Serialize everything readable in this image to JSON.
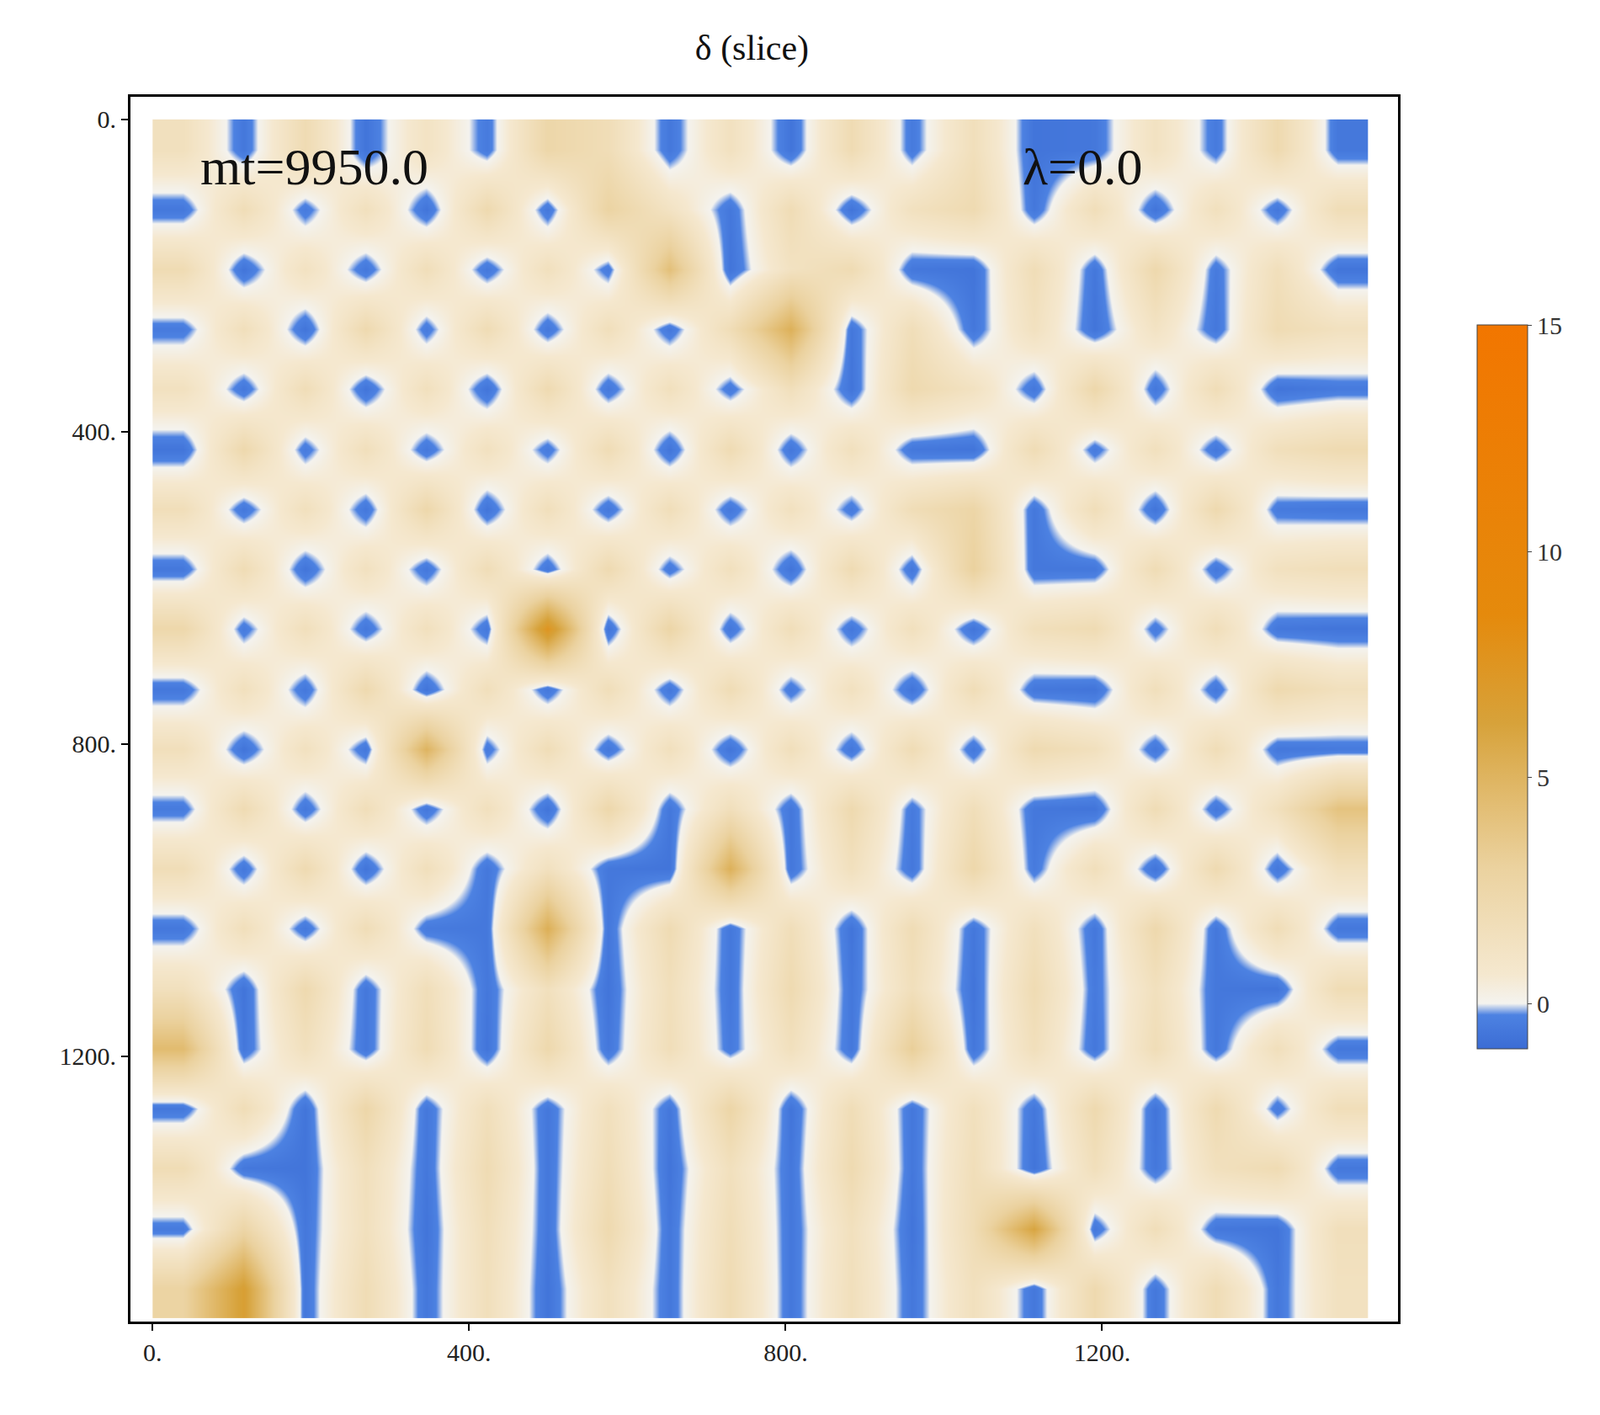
{
  "chart_data": {
    "type": "heatmap",
    "title": "δ (slice)",
    "annotations": [
      "mt=9950.0",
      "λ=0.0"
    ],
    "annotation_x": [
      58,
      1097
    ],
    "annotation_y": [
      60,
      60
    ],
    "x": [
      38.4,
      115.2,
      192,
      268.8,
      345.6,
      422.4,
      499.2,
      576,
      652.8,
      729.6,
      806.4,
      883.2,
      960,
      1036.8,
      1113.6,
      1190.4,
      1267.2,
      1344,
      1420.8,
      1497.6
    ],
    "y": [
      38.4,
      115.2,
      192,
      268.8,
      345.6,
      422.4,
      499.2,
      576,
      652.8,
      729.6,
      806.4,
      883.2,
      960,
      1036.8,
      1113.6,
      1190.4,
      1267.2,
      1344,
      1420.8,
      1497.6
    ],
    "cells": [
      [
        1.5,
        -0.6,
        2,
        -0.7,
        1.2,
        -0.5,
        2.5,
        1.8,
        -0.6,
        1.4,
        -0.7,
        2,
        -0.5,
        1.6,
        -0.7,
        -0.6,
        1.3,
        -0.5,
        2.2,
        -0.6
      ],
      [
        -0.6,
        1.8,
        -0.5,
        1.5,
        -0.7,
        2.2,
        -0.6,
        2.8,
        1.2,
        -0.6,
        1.9,
        -0.7,
        1.4,
        2.1,
        -0.6,
        1.7,
        -0.7,
        1.5,
        -0.6,
        1.8
      ],
      [
        2,
        -0.7,
        1.3,
        -0.6,
        1.7,
        -0.6,
        1.5,
        -0.5,
        4.2,
        -0.7,
        1.3,
        2,
        -0.6,
        -0.7,
        1.8,
        -0.6,
        2.3,
        -0.5,
        1.6,
        -0.7
      ],
      [
        -0.5,
        1.6,
        -0.7,
        2.2,
        -0.5,
        1.9,
        -0.6,
        1.6,
        -0.6,
        1.8,
        5.2,
        -0.6,
        1.7,
        -0.6,
        1.4,
        -0.7,
        1.2,
        -0.6,
        2,
        1.4
      ],
      [
        1.4,
        -0.6,
        1.8,
        -0.7,
        1.5,
        -0.7,
        2.1,
        -0.6,
        1.5,
        -0.5,
        1.6,
        -0.7,
        2.2,
        1.3,
        -0.6,
        2.4,
        -0.6,
        1.8,
        -0.7,
        -0.5
      ],
      [
        -0.7,
        2.3,
        -0.5,
        1.6,
        -0.6,
        1.4,
        -0.5,
        1.9,
        -0.7,
        2,
        -0.6,
        1.5,
        -0.6,
        -0.7,
        1.9,
        -0.5,
        1.5,
        -0.6,
        1.6,
        2.1
      ],
      [
        1.7,
        -0.6,
        1.5,
        -0.6,
        2.4,
        -0.7,
        1.6,
        -0.6,
        1.7,
        -0.6,
        1.4,
        -0.5,
        1.8,
        2.6,
        -0.6,
        1.7,
        -0.7,
        2.2,
        -0.5,
        -0.6
      ],
      [
        -0.6,
        1.9,
        -0.7,
        1.4,
        -0.6,
        1.8,
        -0.6,
        2.1,
        -0.5,
        1.5,
        -0.7,
        2,
        -0.6,
        3,
        -0.6,
        -0.6,
        1.9,
        -0.6,
        1.4,
        1.7
      ],
      [
        2.4,
        -0.5,
        1.6,
        -0.6,
        1.5,
        -0.6,
        7.5,
        -0.7,
        2.6,
        -0.6,
        1.7,
        -0.6,
        1.5,
        -0.7,
        1.6,
        2,
        -0.5,
        1.7,
        -0.6,
        -0.7
      ],
      [
        -0.6,
        1.5,
        -0.6,
        2.2,
        -0.7,
        1.6,
        -0.6,
        1.7,
        -0.6,
        1.9,
        -0.5,
        1.4,
        -0.7,
        1.8,
        -0.6,
        -0.7,
        1.6,
        -0.6,
        2.2,
        1.5
      ],
      [
        1.6,
        -0.7,
        1.4,
        -0.6,
        5,
        -0.5,
        1.8,
        -0.6,
        1.5,
        -0.7,
        1.6,
        -0.6,
        1.9,
        -0.6,
        2.1,
        1.5,
        -0.6,
        1.8,
        -0.6,
        -0.5
      ],
      [
        -0.5,
        2,
        -0.6,
        1.7,
        -0.6,
        1.5,
        -0.7,
        2.4,
        -0.6,
        1.6,
        -0.6,
        2.2,
        -0.5,
        1.7,
        -0.6,
        -0.7,
        1.9,
        -0.6,
        1.5,
        4
      ],
      [
        1.8,
        -0.6,
        2.1,
        -0.7,
        1.6,
        -0.6,
        1.4,
        -0.6,
        -0.7,
        5.2,
        -0.6,
        1.5,
        -0.6,
        2.4,
        -0.5,
        1.6,
        -0.7,
        2.1,
        -0.6,
        1.5
      ],
      [
        -0.6,
        1.6,
        -0.6,
        1.8,
        -0.5,
        -0.6,
        5.3,
        -0.6,
        2,
        -0.6,
        1.7,
        -0.7,
        1.9,
        -0.6,
        1.5,
        -0.6,
        2.3,
        -0.6,
        1.8,
        -0.6
      ],
      [
        1.5,
        -0.7,
        2.2,
        -0.6,
        1.7,
        -0.6,
        1.5,
        -0.7,
        1.6,
        -0.6,
        2.1,
        -0.6,
        1.6,
        -0.7,
        2,
        -0.5,
        1.5,
        -0.6,
        -0.7,
        1.9
      ],
      [
        4.5,
        -0.6,
        1.5,
        -0.6,
        1.9,
        -0.7,
        2.3,
        -0.6,
        1.7,
        -0.5,
        1.5,
        -0.6,
        3.2,
        -0.6,
        1.6,
        -0.6,
        1.8,
        -0.6,
        1.6,
        -0.6
      ],
      [
        -0.6,
        1.8,
        -0.7,
        2.5,
        -0.6,
        1.6,
        -0.6,
        1.5,
        -0.6,
        2.6,
        -0.7,
        1.8,
        -0.6,
        1.5,
        -0.6,
        2.2,
        -0.7,
        2.1,
        -0.5,
        1.7
      ],
      [
        1.9,
        -0.6,
        -0.7,
        1.6,
        -0.6,
        2,
        -0.6,
        1.8,
        -0.7,
        1.5,
        -0.6,
        2.1,
        -0.6,
        1.7,
        -0.7,
        1.6,
        -0.6,
        1.5,
        2,
        -0.6
      ],
      [
        -0.5,
        2.6,
        -0.6,
        1.5,
        -0.7,
        1.7,
        -0.6,
        2.2,
        -0.6,
        1.8,
        -0.6,
        1.5,
        -0.7,
        1.9,
        6,
        -0.6,
        1.7,
        -0.6,
        -0.7,
        1.6
      ],
      [
        2.8,
        6.5,
        -0.6,
        1.9,
        -0.6,
        1.6,
        -0.7,
        1.5,
        -0.6,
        2,
        -0.6,
        1.6,
        -0.6,
        1.5,
        -0.6,
        2.2,
        -0.6,
        1.9,
        -0.6,
        1.4
      ]
    ],
    "xlim": [
      -28,
      1574
    ],
    "ylim": [
      1540,
      -29
    ],
    "xticks": [
      {
        "value": 0,
        "label": "0."
      },
      {
        "value": 400,
        "label": "400."
      },
      {
        "value": 800,
        "label": "800."
      },
      {
        "value": 1200,
        "label": "1200."
      }
    ],
    "yticks": [
      {
        "value": 0,
        "label": "0."
      },
      {
        "value": 400,
        "label": "400."
      },
      {
        "value": 800,
        "label": "800."
      },
      {
        "value": 1200,
        "label": "1200."
      }
    ],
    "colorbar_range": [
      -1,
      15
    ],
    "colorbar_ticks": [
      0,
      5,
      10,
      15
    ],
    "grid": false
  }
}
